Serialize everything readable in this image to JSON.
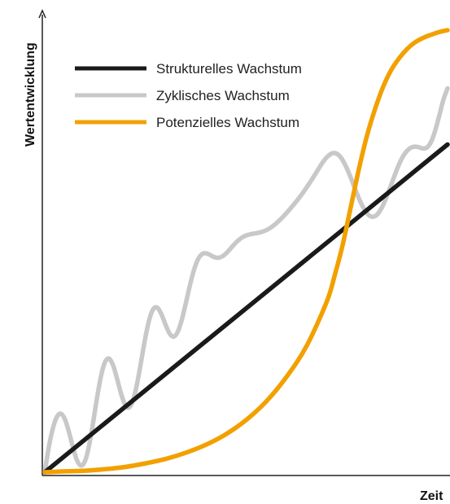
{
  "chart_data": {
    "type": "line",
    "title": "",
    "xlabel": "Zeit",
    "ylabel": "Wertentwicklung",
    "xlim": [
      0,
      100
    ],
    "ylim": [
      0,
      100
    ],
    "grid": false,
    "legend_position": "top-left",
    "series": [
      {
        "name": "Strukturelles Wachstum",
        "color": "#1a1a1a",
        "x": [
          0,
          100
        ],
        "y": [
          0,
          74
        ]
      },
      {
        "name": "Zyklisches Wachstum",
        "color": "#c8c8c8",
        "x": [
          0,
          1,
          2,
          3,
          4,
          5,
          6,
          7,
          8,
          9,
          10,
          11,
          12,
          13,
          14,
          15,
          16,
          17,
          18,
          19,
          20,
          21,
          22,
          23,
          24,
          25,
          26,
          27,
          28,
          29,
          30,
          31,
          32,
          33,
          34,
          35,
          36,
          37,
          38,
          39,
          40,
          41,
          42,
          43,
          44,
          45,
          46,
          47,
          48,
          49,
          50,
          51,
          52,
          53,
          54,
          55,
          56,
          57,
          58,
          59,
          60,
          61,
          62,
          63,
          64,
          65,
          66,
          67,
          68,
          69,
          70,
          71,
          72,
          73,
          74,
          75,
          76,
          77,
          78,
          79,
          80,
          81,
          82,
          83,
          84,
          85,
          86,
          87,
          88,
          89,
          90,
          91,
          92,
          93,
          94,
          95,
          96,
          97,
          98,
          99,
          100
        ],
        "y": [
          0.0,
          5.64,
          9.85,
          12.48,
          13.21,
          11.97,
          9.12,
          5.6,
          2.7,
          1.49,
          2.55,
          6.01,
          11.19,
          16.91,
          21.86,
          24.95,
          25.64,
          24.05,
          20.96,
          17.57,
          15.15,
          14.67,
          16.49,
          20.34,
          25.39,
          30.53,
          34.63,
          36.92,
          37.11,
          35.6,
          33.28,
          31.31,
          30.63,
          31.68,
          34.36,
          38.07,
          42.05,
          45.53,
          47.99,
          49.22,
          49.44,
          49.07,
          48.6,
          48.41,
          48.69,
          49.39,
          50.37,
          51.4,
          52.31,
          53.0,
          53.45,
          53.72,
          53.89,
          54.05,
          54.29,
          54.65,
          55.17,
          55.84,
          56.64,
          57.53,
          58.51,
          59.54,
          60.63,
          61.78,
          62.99,
          64.28,
          65.64,
          67.07,
          68.54,
          69.95,
          71.11,
          71.85,
          72.06,
          71.59,
          70.4,
          68.61,
          66.43,
          64.08,
          61.82,
          59.88,
          58.45,
          57.73,
          57.81,
          58.71,
          60.33,
          62.46,
          64.88,
          67.35,
          69.6,
          71.4,
          72.63,
          73.31,
          73.51,
          73.34,
          73.09,
          73.4,
          74.78,
          77.34,
          80.72,
          84.19,
          86.67
        ]
      },
      {
        "name": "Potenzielles Wachstum",
        "color": "#f2a000",
        "x": [
          0,
          5,
          10,
          15,
          20,
          25,
          30,
          35,
          40,
          45,
          50,
          55,
          60,
          65,
          70,
          72,
          74,
          76,
          78,
          80,
          82,
          84,
          86,
          88,
          90,
          92,
          94,
          96,
          98,
          100
        ],
        "y": [
          0.0,
          0.2,
          0.35,
          0.7,
          1.2,
          2.0,
          3.0,
          4.4,
          6.2,
          8.6,
          11.8,
          16.0,
          21.5,
          28.5,
          38.5,
          44.5,
          51.5,
          60.0,
          68.5,
          76.0,
          82.0,
          87.0,
          90.8,
          93.5,
          95.6,
          97.1,
          98.1,
          98.8,
          99.4,
          99.8
        ]
      }
    ]
  }
}
